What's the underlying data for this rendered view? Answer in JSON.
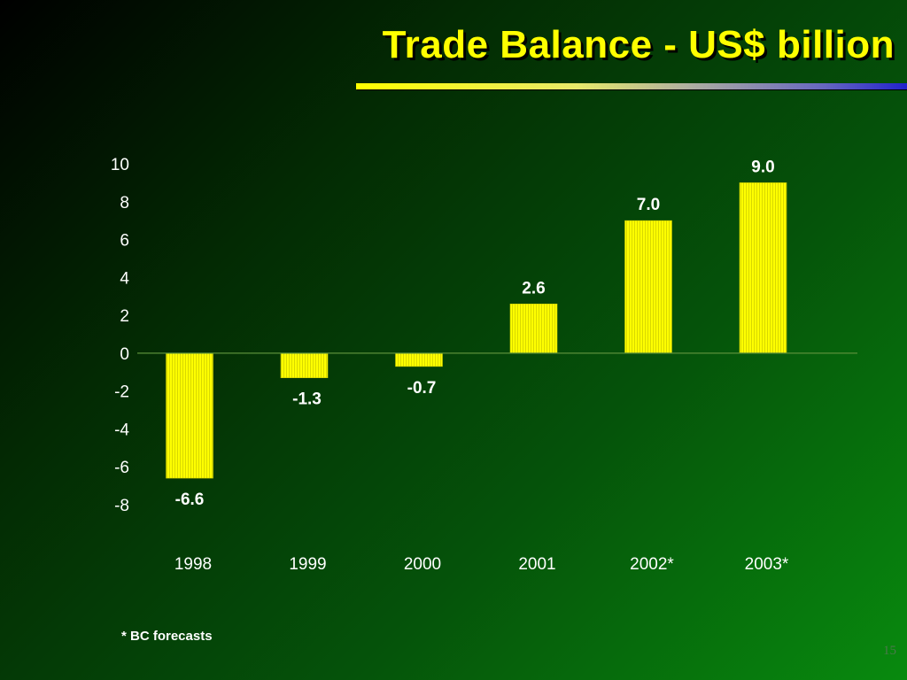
{
  "slide": {
    "title": "Trade Balance - US$ billion",
    "footnote": "* BC forecasts",
    "page_number": "15"
  },
  "colors": {
    "bar_fill": "#ffff00",
    "title_text": "#ffff00",
    "label_text": "#ffffff"
  },
  "chart_data": {
    "type": "bar",
    "title": "Trade Balance - US$ billion",
    "xlabel": "",
    "ylabel": "",
    "categories": [
      "1998",
      "1999",
      "2000",
      "2001",
      "2002*",
      "2003*"
    ],
    "values": [
      -6.6,
      -1.3,
      -0.7,
      2.6,
      7.0,
      9.0
    ],
    "data_labels": [
      "-6.6",
      "-1.3",
      "-0.7",
      "2.6",
      "7.0",
      "9.0"
    ],
    "ylim": [
      -8,
      10
    ],
    "yticks": [
      10,
      8,
      6,
      4,
      2,
      0,
      -2,
      -4,
      -6,
      -8
    ],
    "grid": false,
    "legend": "none"
  }
}
